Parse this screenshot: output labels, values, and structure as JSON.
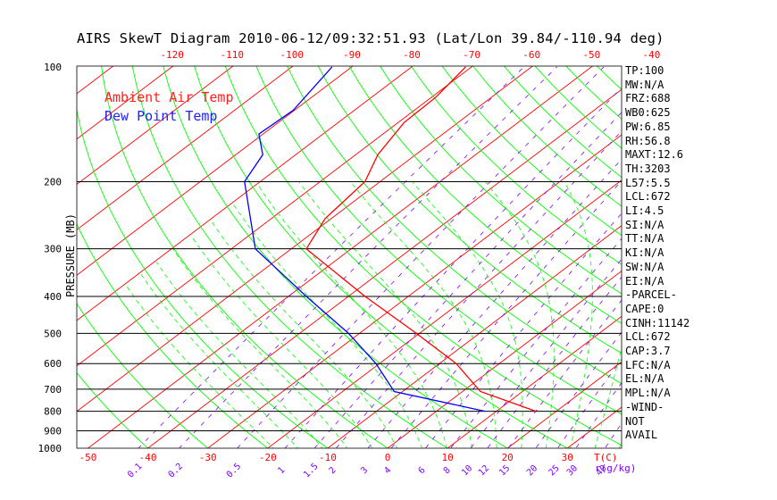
{
  "chart_data": {
    "type": "line",
    "title": "AIRS SkewT Diagram 2010-06-12/09:32:51.93 (Lat/Lon 39.84/-110.94 deg)",
    "ylabel": "PRESSURE (MB)",
    "x_unit_label": "T(C)",
    "mixing_ratio_unit_label": "r(g/kg)",
    "pressure_ticks": [
      100,
      200,
      300,
      400,
      500,
      600,
      700,
      800,
      900,
      1000
    ],
    "top_temp_ticks": [
      -120,
      -110,
      -100,
      -90,
      -80,
      -70,
      -60,
      -50,
      -40
    ],
    "bottom_temp_ticks": [
      -50,
      -40,
      -30,
      -20,
      -10,
      0,
      10,
      20,
      30
    ],
    "mixing_ratio_labels": [
      "0.1",
      "0.2",
      "0.5",
      "1",
      "1.5",
      "2",
      "3",
      "4",
      "6",
      "8",
      "10",
      "12",
      "15",
      "20",
      "25",
      "30",
      "40"
    ],
    "mixing_ratio_values": [
      0.1,
      0.2,
      0.5,
      1,
      1.5,
      2,
      3,
      4,
      6,
      8,
      10,
      12,
      15,
      20,
      25,
      30,
      40
    ],
    "series": [
      {
        "name": "Ambient Air Temp",
        "color": "#ff0000",
        "points": [
          {
            "p": 800,
            "t": 16.6
          },
          {
            "p": 710,
            "t": 3.0
          },
          {
            "p": 600,
            "t": -7.2
          },
          {
            "p": 500,
            "t": -20.5
          },
          {
            "p": 400,
            "t": -37.2
          },
          {
            "p": 300,
            "t": -57.5
          },
          {
            "p": 250,
            "t": -61.0
          },
          {
            "p": 200,
            "t": -62.5
          },
          {
            "p": 170,
            "t": -66.3
          },
          {
            "p": 140,
            "t": -69.0
          },
          {
            "p": 120,
            "t": -69.3
          },
          {
            "p": 100,
            "t": -71.0
          }
        ]
      },
      {
        "name": "Dew Point Temp",
        "color": "#0000ff",
        "points": [
          {
            "p": 800,
            "t": 8.1
          },
          {
            "p": 710,
            "t": -11.4
          },
          {
            "p": 600,
            "t": -20.6
          },
          {
            "p": 500,
            "t": -31.8
          },
          {
            "p": 400,
            "t": -47.0
          },
          {
            "p": 300,
            "t": -66.0
          },
          {
            "p": 200,
            "t": -82.6
          },
          {
            "p": 170,
            "t": -85.5
          },
          {
            "p": 150,
            "t": -90.7
          },
          {
            "p": 130,
            "t": -90.2
          },
          {
            "p": 100,
            "t": -93.3
          }
        ]
      }
    ],
    "line_colors": {
      "isotherm": "#ff0000",
      "dry_adiabat": "#00ff00",
      "moist_adiabat": "#00ff00",
      "mixing_ratio": "#8000ff",
      "isobar": "#000000"
    },
    "stats": [
      "TP:100",
      "MW:N/A",
      "FRZ:688",
      "WB0:625",
      "PW:6.85",
      "RH:56.8",
      "MAXT:12.6",
      "TH:3203",
      "L57:5.5",
      "LCL:672",
      "LI:4.5",
      "SI:N/A",
      "TT:N/A",
      "KI:N/A",
      "SW:N/A",
      "EI:N/A",
      "-PARCEL-",
      "CAPE:0",
      "CINH:11142",
      "LCL:672",
      "CAP:3.7",
      "LFC:N/A",
      "EL:N/A",
      "MPL:N/A",
      "-WIND-",
      "NOT",
      "AVAIL"
    ]
  }
}
